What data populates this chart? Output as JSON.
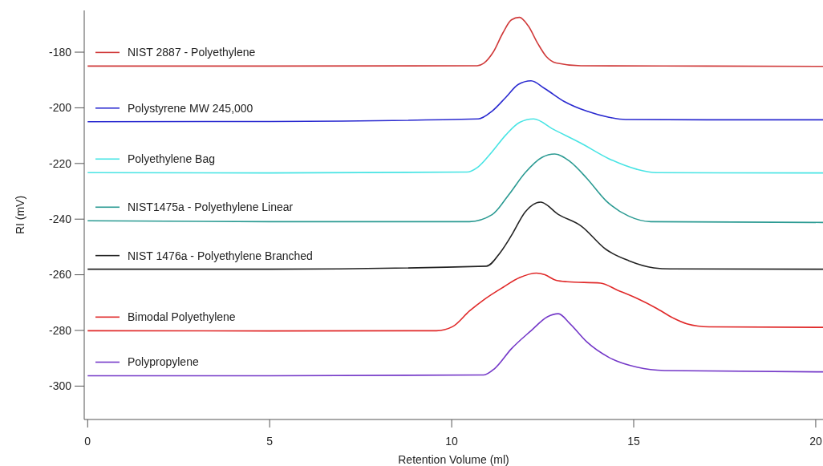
{
  "chart_data": {
    "type": "line",
    "xlabel": "Retention Volume (ml)",
    "ylabel": "RI (mV)",
    "xlim": [
      -0.05,
      20.2
    ],
    "ylim": [
      -312,
      -165
    ],
    "xticks": [
      0,
      5,
      10,
      15,
      20
    ],
    "yticks": [
      -300,
      -280,
      -260,
      -240,
      -220,
      -200,
      -180
    ],
    "grid": false,
    "legend": "top left",
    "marker": "none",
    "line_style": "solid",
    "series": [
      {
        "name": "NIST 2887 - Polyethylene",
        "color": "#d03a3a",
        "x": [
          0,
          5,
          10.7,
          10.88,
          11.14,
          11.41,
          11.64,
          11.86,
          12.1,
          12.37,
          12.6,
          12.87,
          13.55,
          17,
          20.2
        ],
        "values": [
          -185,
          -185,
          -184.9,
          -184,
          -180,
          -173,
          -168.4,
          -167.5,
          -170.5,
          -177,
          -181.6,
          -183.9,
          -184.9,
          -185,
          -185.1
        ]
      },
      {
        "name": "Polystyrene MW 245,000",
        "color": "#2a2ad0",
        "x": [
          0,
          5,
          10.73,
          11.11,
          11.49,
          11.83,
          12.18,
          12.56,
          13.09,
          13.71,
          14.32,
          14.78,
          17,
          20.2
        ],
        "values": [
          -205,
          -204.9,
          -204,
          -201.2,
          -196.2,
          -191.6,
          -190.3,
          -193.1,
          -197.7,
          -201.2,
          -203.4,
          -204.2,
          -204.3,
          -204.3
        ]
      },
      {
        "name": "Polyethylene Bag",
        "color": "#48e4e4",
        "x": [
          0,
          5,
          10.42,
          10.72,
          11.11,
          11.49,
          11.87,
          12.25,
          12.79,
          13.55,
          14.32,
          15.09,
          15.62,
          20.2
        ],
        "values": [
          -223.3,
          -223.4,
          -223.1,
          -221.3,
          -215.8,
          -209.7,
          -205.2,
          -204,
          -207.7,
          -212.7,
          -218.3,
          -222.1,
          -223.3,
          -223.4
        ]
      },
      {
        "name": "NIST1475a - Polyethylene Linear",
        "color": "#2a9a92",
        "x": [
          0,
          5,
          10.49,
          11.11,
          11.56,
          12.02,
          12.48,
          12.83,
          13.25,
          13.71,
          14.24,
          14.86,
          15.47,
          20.2
        ],
        "values": [
          -240.6,
          -240.9,
          -240.9,
          -238.4,
          -231.4,
          -223.3,
          -217.8,
          -216.6,
          -219.3,
          -225.3,
          -233.4,
          -238.9,
          -240.9,
          -241.2
        ]
      },
      {
        "name": "NIST 1476a - Polyethylene Branched",
        "color": "#222222",
        "x": [
          0,
          5,
          10.95,
          11.34,
          11.64,
          12.02,
          12.44,
          12.94,
          13.55,
          14.24,
          14.86,
          15.55,
          16,
          20.2
        ],
        "values": [
          -258,
          -258,
          -256.9,
          -251.9,
          -245.9,
          -237.4,
          -233.9,
          -238.4,
          -242.4,
          -250.9,
          -254.9,
          -257.5,
          -257.9,
          -258
        ]
      },
      {
        "name": "Bimodal Polyethylene",
        "color": "#e02828",
        "x": [
          0,
          5,
          9.58,
          10.03,
          10.49,
          10.88,
          11.41,
          11.87,
          12.33,
          12.56,
          12.87,
          13.17,
          14.09,
          14.55,
          15.09,
          15.62,
          16.08,
          16.46,
          17.07,
          20.2
        ],
        "values": [
          -280.1,
          -280.2,
          -280.1,
          -278.6,
          -273,
          -269,
          -264.5,
          -261,
          -259.4,
          -260,
          -262,
          -262.5,
          -263,
          -265.5,
          -268.5,
          -272,
          -275.5,
          -277.6,
          -278.7,
          -278.9
        ]
      },
      {
        "name": "Polypropylene",
        "color": "#7438c8",
        "x": [
          0,
          5,
          10.88,
          11.18,
          11.64,
          12.18,
          12.63,
          12.93,
          13.25,
          13.71,
          14.32,
          15.09,
          15.85,
          20.2
        ],
        "values": [
          -296.3,
          -296.3,
          -296,
          -293.7,
          -286.6,
          -280.1,
          -275.1,
          -274,
          -277.6,
          -284.1,
          -289.7,
          -293.2,
          -294.4,
          -294.9
        ]
      }
    ]
  }
}
